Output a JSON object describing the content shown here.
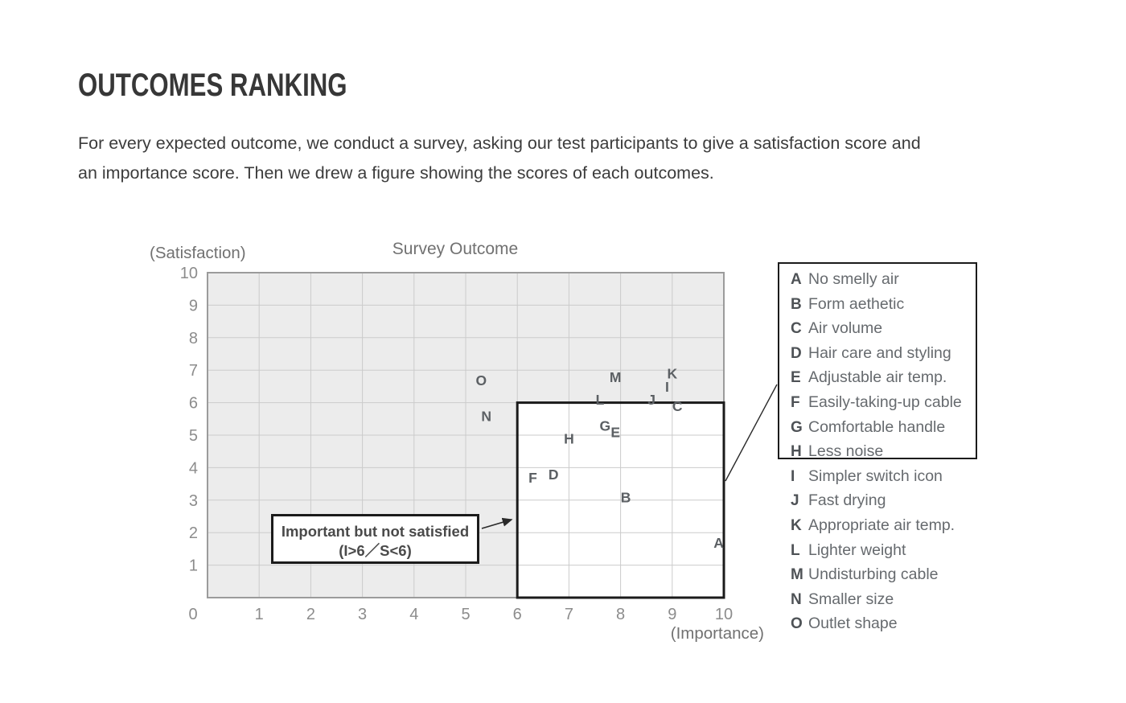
{
  "header": {
    "title": "OUTCOMES RANKING",
    "description_line1": "For every expected outcome, we conduct a survey, asking our test participants to give a satisfaction score and",
    "description_line2": "an importance score. Then we drew a figure showing the scores of each outcomes."
  },
  "chart": {
    "title": "Survey Outcome",
    "y_axis_label": "(Satisfaction)",
    "x_axis_label": "(Importance)"
  },
  "legend": {
    "items": [
      {
        "key": "A",
        "label": "No smelly air"
      },
      {
        "key": "B",
        "label": "Form aethetic"
      },
      {
        "key": "C",
        "label": "Air volume"
      },
      {
        "key": "D",
        "label": "Hair care and styling"
      },
      {
        "key": "E",
        "label": "Adjustable air temp."
      },
      {
        "key": "F",
        "label": "Easily-taking-up cable"
      },
      {
        "key": "G",
        "label": "Comfortable handle"
      },
      {
        "key": "H",
        "label": "Less noise"
      },
      {
        "key": "I",
        "label": "Simpler switch icon"
      },
      {
        "key": "J",
        "label": "Fast drying"
      },
      {
        "key": "K",
        "label": "Appropriate air temp."
      },
      {
        "key": "L",
        "label": "Lighter weight"
      },
      {
        "key": "M",
        "label": "Undisturbing cable"
      },
      {
        "key": "N",
        "label": "Smaller size"
      },
      {
        "key": "O",
        "label": "Outlet shape"
      }
    ],
    "boxed_items_count": 8
  },
  "chart_data": {
    "type": "scatter",
    "title": "Survey Outcome",
    "xlabel": "(Importance)",
    "ylabel": "(Satisfaction)",
    "xlim": [
      0,
      10
    ],
    "ylim": [
      0,
      10
    ],
    "x_ticks": [
      0,
      1,
      2,
      3,
      4,
      5,
      6,
      7,
      8,
      9,
      10
    ],
    "y_ticks": [
      1,
      2,
      3,
      4,
      5,
      6,
      7,
      8,
      9,
      10
    ],
    "grid": true,
    "points": [
      {
        "label": "A",
        "name": "No smelly air",
        "importance": 9.9,
        "satisfaction": 1.7
      },
      {
        "label": "B",
        "name": "Form aethetic",
        "importance": 8.1,
        "satisfaction": 3.1
      },
      {
        "label": "C",
        "name": "Air volume",
        "importance": 9.1,
        "satisfaction": 5.9
      },
      {
        "label": "D",
        "name": "Hair care and styling",
        "importance": 6.7,
        "satisfaction": 3.8
      },
      {
        "label": "E",
        "name": "Adjustable air temp.",
        "importance": 7.9,
        "satisfaction": 5.1
      },
      {
        "label": "F",
        "name": "Easily-taking-up cable",
        "importance": 6.3,
        "satisfaction": 3.7
      },
      {
        "label": "G",
        "name": "Comfortable handle",
        "importance": 7.7,
        "satisfaction": 5.3
      },
      {
        "label": "H",
        "name": "Less noise",
        "importance": 7.0,
        "satisfaction": 4.9
      },
      {
        "label": "I",
        "name": "Simpler switch icon",
        "importance": 8.9,
        "satisfaction": 6.5
      },
      {
        "label": "J",
        "name": "Fast drying",
        "importance": 8.6,
        "satisfaction": 6.1
      },
      {
        "label": "K",
        "name": "Appropriate air temp.",
        "importance": 9.0,
        "satisfaction": 6.9
      },
      {
        "label": "L",
        "name": "Lighter weight",
        "importance": 7.6,
        "satisfaction": 6.1
      },
      {
        "label": "M",
        "name": "Undisturbing cable",
        "importance": 7.9,
        "satisfaction": 6.8
      },
      {
        "label": "N",
        "name": "Smaller size",
        "importance": 5.4,
        "satisfaction": 5.6
      },
      {
        "label": "O",
        "name": "Outlet shape",
        "importance": 5.3,
        "satisfaction": 6.7
      }
    ],
    "highlight_region": {
      "x_range": [
        6,
        10
      ],
      "y_range": [
        0,
        6
      ],
      "annotation_line1": "Important but not satisfied",
      "annotation_line2": "(I>6／S<6)"
    },
    "legend_position": "right"
  },
  "colors": {
    "heading_text": "#373737",
    "body_text": "#3c3c3c",
    "chart_label_text": "#717171",
    "tick_text": "#8c8c8c",
    "plot_bg": "#ececec",
    "grid_line": "#cbcbcb",
    "plot_border": "#9b9b9b",
    "highlight_border": "#1b1b1b",
    "point_letter": "#5c6064",
    "legend_key": "#4e5256",
    "legend_label": "#666a6e",
    "callout_line": "#2a2a2a"
  }
}
